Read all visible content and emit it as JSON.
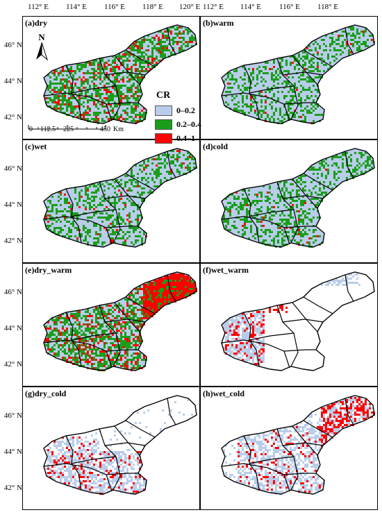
{
  "top_ticks_left": [
    "112° E",
    "114° E",
    "116° E",
    "118° E",
    "120° E"
  ],
  "top_ticks_right": [
    "112° E",
    "114° E",
    "116° E",
    "118° E"
  ],
  "lat_ticks": [
    "46° N",
    "44° N",
    "42° N"
  ],
  "panels": [
    {
      "label": "(a)dry",
      "pattern": "mixed-red-green"
    },
    {
      "label": "(b)warm",
      "pattern": "blue-green"
    },
    {
      "label": "(c)wet",
      "pattern": "blue-green"
    },
    {
      "label": "(d)cold",
      "pattern": "blue-green"
    },
    {
      "label": "(e)dry_warm",
      "pattern": "red-east"
    },
    {
      "label": "(f)wet_warm",
      "pattern": "sparse-west"
    },
    {
      "label": "(g)dry_cold",
      "pattern": "sparse-south"
    },
    {
      "label": "(h)wet_cold",
      "pattern": "sparse-east"
    }
  ],
  "legend": {
    "title": "CR",
    "items": [
      {
        "label": "0–0.2",
        "color": "#b9cdea"
      },
      {
        "label": "0.2–0.4",
        "color": "#1a9e1a"
      },
      {
        "label": "0.4–1",
        "color": "#ff0000"
      }
    ]
  },
  "north_label": "N",
  "scale": {
    "labels": [
      "0",
      "112.5",
      "225",
      "450"
    ],
    "unit": "Km"
  },
  "colors": {
    "blue": "#b9cdea",
    "green": "#1a9e1a",
    "red": "#ff0000",
    "boundary": "#000000"
  }
}
